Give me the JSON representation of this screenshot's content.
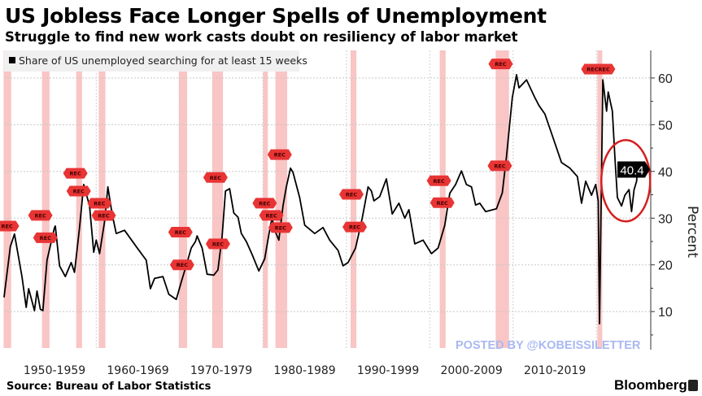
{
  "header": {
    "title": "US Jobless Face Longer Spells of Unemployment",
    "subtitle": "Struggle to find new work casts doubt on resiliency of labor market"
  },
  "footer": {
    "source": "Source: Bureau of Labor Statistics",
    "brand": "Bloomberg",
    "watermark": "POSTED BY @KOBEISSILETTER"
  },
  "chart_data": {
    "type": "line",
    "title": "US Jobless Face Longer Spells of Unemployment",
    "ylabel": "Percent",
    "xlim": [
      1948.95,
      2026.5
    ],
    "ylim": [
      2.2,
      65.9
    ],
    "y_axis_side": "right",
    "y_ticks": [
      10,
      20,
      30,
      40,
      50,
      60
    ],
    "x_tick_labels": [
      {
        "label": "1950-1959",
        "center": 1955
      },
      {
        "label": "1960-1969",
        "center": 1965
      },
      {
        "label": "1970-1979",
        "center": 1975
      },
      {
        "label": "1980-1989",
        "center": 1985
      },
      {
        "label": "1990-1999",
        "center": 1995
      },
      {
        "label": "2000-2009",
        "center": 2005
      },
      {
        "label": "2010-2019",
        "center": 2015
      }
    ],
    "decade_gridlines": [
      1960,
      1970,
      1980,
      1990,
      2000,
      2010,
      2020
    ],
    "grid": true,
    "legend_position": "top-left",
    "series": [
      {
        "name": "Share of US unemployed searching for at least 15 weeks",
        "color": "#000000",
        "x": [
          1948.95,
          1949.7,
          1950.2,
          1951.1,
          1951.6,
          1951.9,
          1952.6,
          1952.9,
          1953.3,
          1953.6,
          1954.1,
          1955.0,
          1955.1,
          1955.6,
          1956.3,
          1957.0,
          1957.4,
          1958.0,
          1958.5,
          1959.2,
          1959.7,
          1960.0,
          1960.4,
          1961.0,
          1961.4,
          1961.9,
          1962.4,
          1963.4,
          1964.8,
          1966.0,
          1966.5,
          1967.0,
          1968.0,
          1968.7,
          1969.6,
          1970.2,
          1970.9,
          1971.4,
          1971.9,
          1972.1,
          1972.7,
          1973.3,
          1974.1,
          1974.6,
          1975.1,
          1975.5,
          1976.0,
          1976.5,
          1977.0,
          1977.4,
          1978.0,
          1978.7,
          1979.5,
          1980.2,
          1980.9,
          1981.1,
          1981.4,
          1981.9,
          1982.4,
          1982.8,
          1983.3,
          1983.6,
          1984.4,
          1985.0,
          1986.2,
          1987.2,
          1988.0,
          1989.0,
          1989.6,
          1990.2,
          1991.1,
          1991.9,
          1992.6,
          1993.0,
          1993.3,
          1994.0,
          1994.8,
          1995.5,
          1996.3,
          1997.0,
          1997.5,
          1998.2,
          1999.2,
          2000.2,
          2001.0,
          2001.8,
          2002.4,
          2003.1,
          2003.8,
          2004.4,
          2005.0,
          2005.5,
          2006.0,
          2006.7,
          2008.0,
          2008.7,
          2009.2,
          2009.9,
          2010.4,
          2010.7,
          2011.6,
          2012.6,
          2013.1,
          2013.8,
          2014.8,
          2015.8,
          2016.8,
          2017.7,
          2018.2,
          2018.7,
          2019.4,
          2019.9,
          2020.2,
          2020.35,
          2020.75,
          2021.2,
          2021.4,
          2021.9,
          2022.2,
          2022.5,
          2023.0,
          2023.4,
          2023.9,
          2024.2,
          2024.5,
          2024.8,
          2024.9
        ],
        "y": [
          13.1,
          23.9,
          26.6,
          17.5,
          10.9,
          14.9,
          10.2,
          14.4,
          10.5,
          10.2,
          21.0,
          28.0,
          28.3,
          19.8,
          17.5,
          20.5,
          18.4,
          28.0,
          37.2,
          32.6,
          22.7,
          25.3,
          22.4,
          29.2,
          36.7,
          30.9,
          26.7,
          27.4,
          23.9,
          21.0,
          14.9,
          17.1,
          17.5,
          13.7,
          12.6,
          16.3,
          20.5,
          23.6,
          25.0,
          26.2,
          23.6,
          18.0,
          17.8,
          18.9,
          26.2,
          35.8,
          36.3,
          31.1,
          30.2,
          26.7,
          25.0,
          22.2,
          18.7,
          21.3,
          28.5,
          30.0,
          27.4,
          25.3,
          32.6,
          36.7,
          40.7,
          39.8,
          34.4,
          28.5,
          26.7,
          28.0,
          25.3,
          23.1,
          19.8,
          20.5,
          23.6,
          30.0,
          36.7,
          35.8,
          33.7,
          34.6,
          38.4,
          30.9,
          33.2,
          30.0,
          31.8,
          24.5,
          25.3,
          22.4,
          23.6,
          28.5,
          35.3,
          37.2,
          40.1,
          37.2,
          36.7,
          32.8,
          33.2,
          31.4,
          32.0,
          35.4,
          43.1,
          55.8,
          60.7,
          57.9,
          59.6,
          55.8,
          54.1,
          52.3,
          47.1,
          41.9,
          40.7,
          38.9,
          33.2,
          37.9,
          34.9,
          37.2,
          33.7,
          7.4,
          59.6,
          52.9,
          57.0,
          52.9,
          43.1,
          34.4,
          32.6,
          34.9,
          36.1,
          31.4,
          36.1,
          37.9,
          40.4
        ]
      }
    ],
    "last_value_label": "40.4",
    "recessions": [
      [
        1948.9,
        1949.8
      ],
      [
        1953.5,
        1954.4
      ],
      [
        1957.6,
        1958.3
      ],
      [
        1960.3,
        1961.1
      ],
      [
        1969.9,
        1970.9
      ],
      [
        1973.9,
        1975.2
      ],
      [
        1980.0,
        1980.5
      ],
      [
        1981.5,
        1982.9
      ],
      [
        1990.5,
        1991.2
      ],
      [
        2001.2,
        2001.9
      ],
      [
        2007.9,
        2009.5
      ],
      [
        2020.1,
        2020.3
      ]
    ],
    "recession_color": "#f7b7b7",
    "annotations": [
      {
        "text": "REC",
        "x": 1949.3,
        "y": 28.3
      },
      {
        "text": "REC",
        "x": 1953.3,
        "y": 30.6
      },
      {
        "text": "REC",
        "x": 1953.9,
        "y": 25.8
      },
      {
        "text": "REC",
        "x": 1957.5,
        "y": 39.6
      },
      {
        "text": "REC",
        "x": 1957.9,
        "y": 35.8
      },
      {
        "text": "REC",
        "x": 1960.4,
        "y": 39.1
      },
      {
        "text": "REC",
        "x": 1960.9,
        "y": 31.3
      },
      {
        "text": "REC",
        "x": 1970.1,
        "y": 27.0
      },
      {
        "text": "REC",
        "x": 1970.3,
        "y": 20.0
      },
      {
        "text": "REC",
        "x": 1974.3,
        "y": 38.7
      },
      {
        "text": "REC",
        "x": 1974.6,
        "y": 24.5
      },
      {
        "text": "REC",
        "x": 1980.2,
        "y": 33.2
      },
      {
        "text": "REC",
        "x": 1981.0,
        "y": 31.1
      },
      {
        "text": "REC",
        "x": 1982.0,
        "y": 43.6
      },
      {
        "text": "REC",
        "x": 1982.1,
        "y": 33.4
      },
      {
        "text": "REC",
        "x": 1990.6,
        "y": 35.1
      },
      {
        "text": "REC",
        "x": 1991.0,
        "y": 28.1
      },
      {
        "text": "REC",
        "x": 2001.1,
        "y": 38.0
      },
      {
        "text": "REC",
        "x": 2001.5,
        "y": 33.3
      },
      {
        "text": "REC",
        "x": 2008.5,
        "y": 63.0
      },
      {
        "text": "REC",
        "x": 2008.4,
        "y": 41.2
      },
      {
        "text": "RECREC",
        "x": 2020.2,
        "y": 61.9
      }
    ],
    "highlight": {
      "shape": "ellipse",
      "color": "#d42020",
      "x_center": 2023.5,
      "y_center": 38.0
    }
  }
}
